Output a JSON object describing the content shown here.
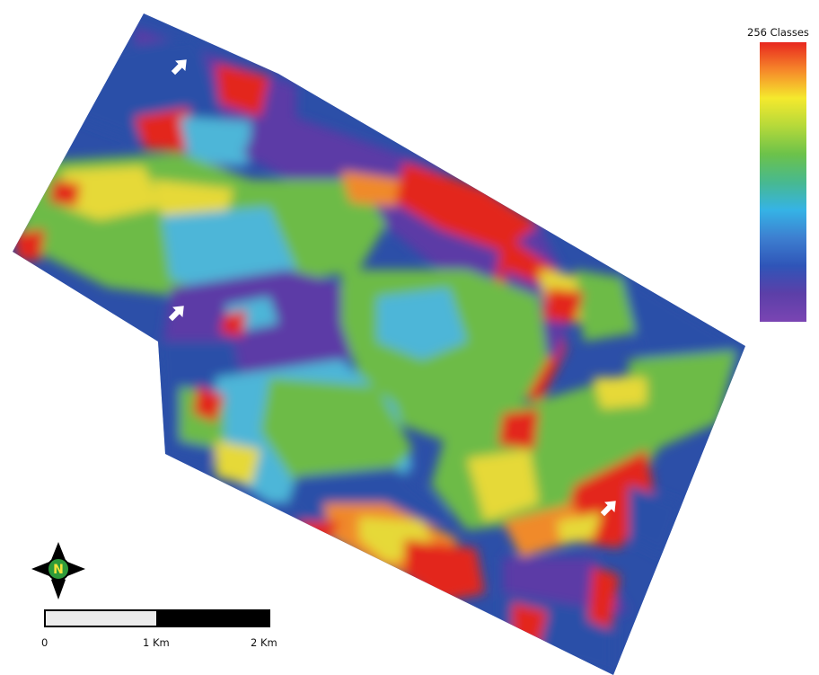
{
  "legend": {
    "title": "256 Classes",
    "ramp_colors": [
      "#e8271f",
      "#f6882a",
      "#f5e92d",
      "#b5d93a",
      "#6cc24a",
      "#48b98f",
      "#35b3e6",
      "#3d7fd0",
      "#2f55b8",
      "#5c3fa8",
      "#7a45b3"
    ]
  },
  "scale_bar": {
    "labels": [
      "0",
      "1 Km",
      "2 Km"
    ],
    "segment_colors": [
      "#ececec",
      "#000000"
    ]
  },
  "north_arrow": {
    "letter": "N",
    "badge_color": "#2e9a3a"
  },
  "map": {
    "palette": {
      "blue": "#2c4fa8",
      "purple": "#5b3aa6",
      "cyan": "#4db6d8",
      "green": "#6dbb47",
      "yellow": "#e6d939",
      "orange": "#f08a2c",
      "red": "#e3261f"
    },
    "markers": [
      "arrow",
      "arrow",
      "arrow"
    ]
  }
}
